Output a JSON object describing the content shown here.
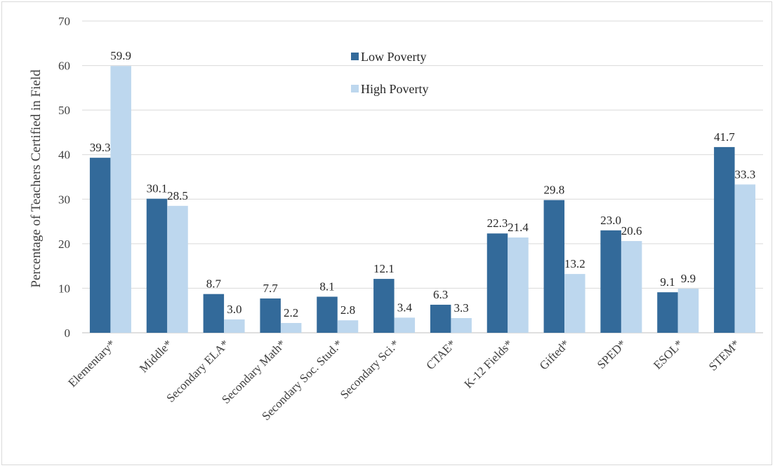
{
  "chart_data": {
    "type": "bar",
    "title": "",
    "xlabel": "",
    "ylabel": "Percentage of Teachers Certified in Field",
    "ylim": [
      0,
      70
    ],
    "yticks": [
      0,
      10,
      20,
      30,
      40,
      50,
      60,
      70
    ],
    "grid": true,
    "legend_position": "top-center",
    "categories": [
      "Elementary*",
      "Middle*",
      "Secondary ELA*",
      "Secondary Math*",
      "Secondary Soc. Stud.*",
      "Secondary Sci.*",
      "CTAE*",
      "K-12 Fields*",
      "Gifted*",
      "SPED*",
      "ESOL*",
      "STEM*"
    ],
    "series": [
      {
        "name": "Low Poverty",
        "color": "#336a9a",
        "values": [
          39.3,
          30.1,
          8.7,
          7.7,
          8.1,
          12.1,
          6.3,
          22.3,
          29.8,
          23.0,
          9.1,
          41.7
        ],
        "labels": [
          "39.3",
          "30.1",
          "8.7",
          "7.7",
          "8.1",
          "12.1",
          "6.3",
          "22.3",
          "29.8",
          "23.0",
          "9.1",
          "41.7"
        ]
      },
      {
        "name": "High Poverty",
        "color": "#bdd7ee",
        "values": [
          59.9,
          28.5,
          3.0,
          2.2,
          2.8,
          3.4,
          3.3,
          21.4,
          13.2,
          20.6,
          9.9,
          33.3
        ],
        "labels": [
          "59.9",
          "28.5",
          "3.0",
          "2.2",
          "2.8",
          "3.4",
          "3.3",
          "21.4",
          "13.2",
          "20.6",
          "9.9",
          "33.3"
        ]
      }
    ]
  }
}
